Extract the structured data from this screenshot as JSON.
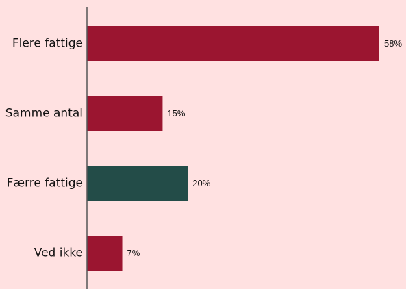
{
  "chart_data": {
    "type": "bar",
    "orientation": "horizontal",
    "categories": [
      "Flere fattige",
      "Samme antal",
      "Færre fattige",
      "Ved ikke"
    ],
    "values": [
      58,
      15,
      20,
      7
    ],
    "value_labels": [
      "58%",
      "15%",
      "20%",
      "7%"
    ],
    "bar_colors": [
      "#9b1530",
      "#9b1530",
      "#234c48",
      "#9b1530"
    ],
    "xlim": [
      0,
      60
    ],
    "grid": false,
    "legend": "none"
  },
  "colors": {
    "background": "#ffe1e1",
    "axis": "#555555"
  }
}
